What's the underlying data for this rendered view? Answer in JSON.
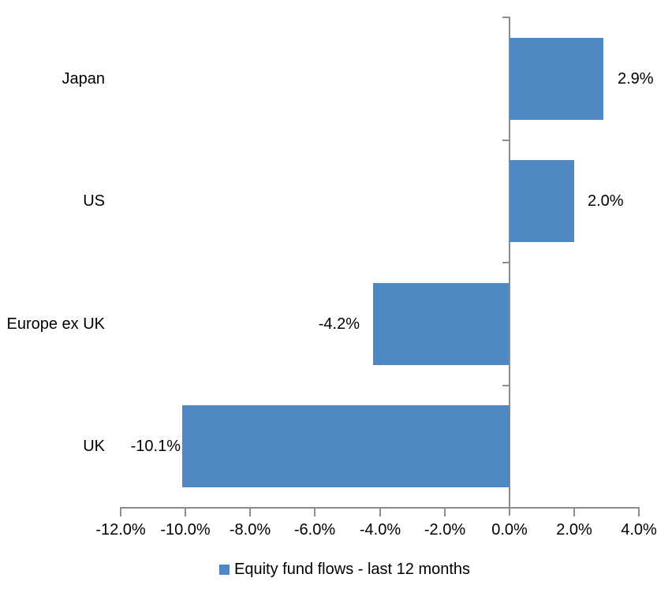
{
  "chart_data": {
    "type": "bar",
    "orientation": "horizontal",
    "title": "",
    "categories": [
      "Japan",
      "US",
      "Europe ex UK",
      "UK"
    ],
    "series": [
      {
        "name": "Equity fund flows - last 12 months",
        "values": [
          2.9,
          2.0,
          -4.2,
          -10.1
        ],
        "data_labels": [
          "2.9%",
          "2.0%",
          "-4.2%",
          "-10.1%"
        ]
      }
    ],
    "xlim": [
      -12,
      4
    ],
    "x_ticks": [
      {
        "value": -12,
        "label": "-12.0%"
      },
      {
        "value": -10,
        "label": "-10.0%"
      },
      {
        "value": -8,
        "label": "-8.0%"
      },
      {
        "value": -6,
        "label": "-6.0%"
      },
      {
        "value": -4,
        "label": "-4.0%"
      },
      {
        "value": -2,
        "label": "-2.0%"
      },
      {
        "value": 0,
        "label": "0.0%"
      },
      {
        "value": 2,
        "label": "2.0%"
      },
      {
        "value": 4,
        "label": "4.0%"
      }
    ],
    "grid": false,
    "legend": {
      "position": "bottom",
      "label": "Equity fund flows - last 12 months"
    },
    "colors": {
      "bar": "#4e87c1",
      "axis": "#8c8c8c",
      "text": "#000000",
      "background": "#ffffff"
    }
  }
}
